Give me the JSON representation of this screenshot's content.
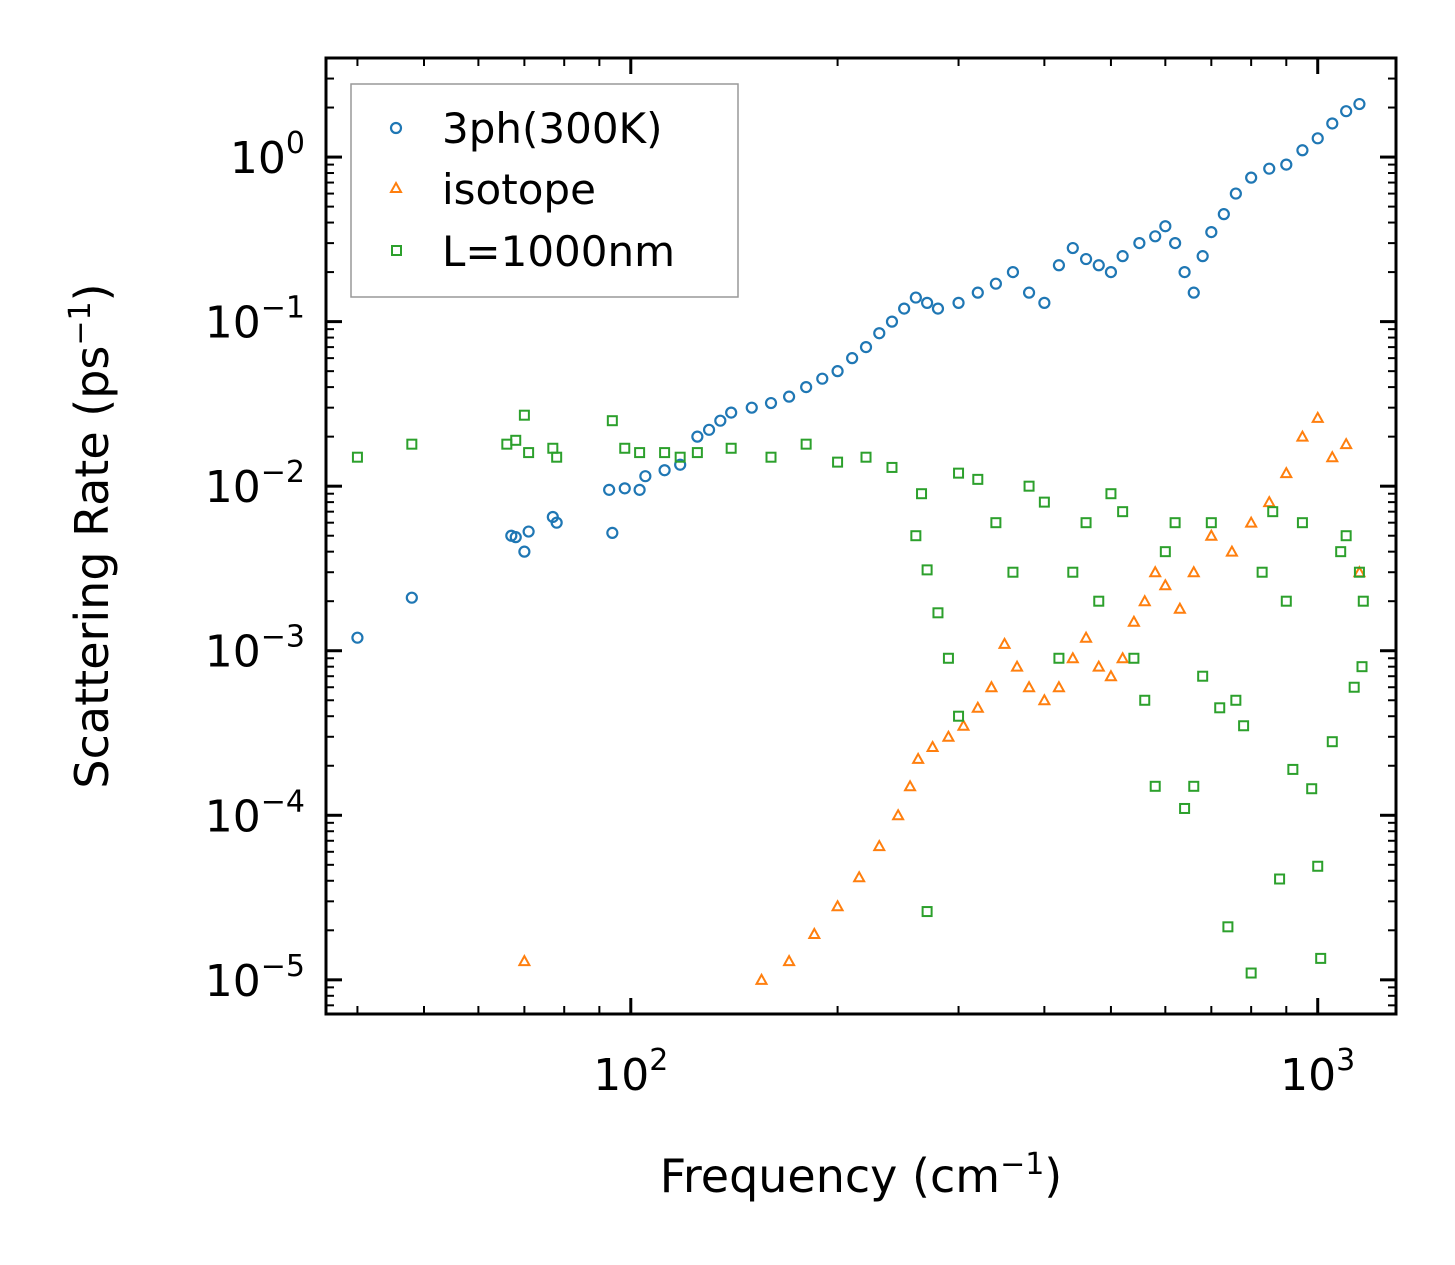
{
  "chart_data": {
    "type": "scatter",
    "xscale": "log",
    "yscale": "log",
    "xlim": [
      36,
      1300
    ],
    "ylim": [
      6.2e-06,
      4.0
    ],
    "xlabel": "Frequency (cm",
    "xlabel_sup": "−1",
    "xlabel_end": ")",
    "ylabel": "Scattering Rate (ps",
    "ylabel_sup": "−1",
    "ylabel_end": ")",
    "xticks": [
      {
        "value": 100,
        "base": "10",
        "exp": "2"
      },
      {
        "value": 1000,
        "base": "10",
        "exp": "3"
      }
    ],
    "yticks": [
      {
        "value": 1,
        "base": "10",
        "exp": "0"
      },
      {
        "value": 0.1,
        "base": "10",
        "exp": "−1"
      },
      {
        "value": 0.01,
        "base": "10",
        "exp": "−2"
      },
      {
        "value": 0.001,
        "base": "10",
        "exp": "−3"
      },
      {
        "value": 0.0001,
        "base": "10",
        "exp": "−4"
      },
      {
        "value": 1e-05,
        "base": "10",
        "exp": "−5"
      }
    ],
    "legend_position": "top-left",
    "series": [
      {
        "name": "3ph(300K)",
        "marker": "circle",
        "color": "#1f77b4",
        "points": [
          [
            40,
            0.0012
          ],
          [
            48,
            0.0021
          ],
          [
            67,
            0.005
          ],
          [
            68,
            0.0049
          ],
          [
            70,
            0.004
          ],
          [
            71,
            0.0053
          ],
          [
            77,
            0.0065
          ],
          [
            78,
            0.006
          ],
          [
            93,
            0.0095
          ],
          [
            94,
            0.0052
          ],
          [
            98,
            0.0097
          ],
          [
            103,
            0.0095
          ],
          [
            105,
            0.0115
          ],
          [
            112,
            0.0125
          ],
          [
            118,
            0.0135
          ],
          [
            125,
            0.02
          ],
          [
            130,
            0.022
          ],
          [
            135,
            0.025
          ],
          [
            140,
            0.028
          ],
          [
            150,
            0.03
          ],
          [
            160,
            0.032
          ],
          [
            170,
            0.035
          ],
          [
            180,
            0.04
          ],
          [
            190,
            0.045
          ],
          [
            200,
            0.05
          ],
          [
            210,
            0.06
          ],
          [
            220,
            0.07
          ],
          [
            230,
            0.085
          ],
          [
            240,
            0.1
          ],
          [
            250,
            0.12
          ],
          [
            260,
            0.14
          ],
          [
            270,
            0.13
          ],
          [
            280,
            0.12
          ],
          [
            300,
            0.13
          ],
          [
            320,
            0.15
          ],
          [
            340,
            0.17
          ],
          [
            360,
            0.2
          ],
          [
            380,
            0.15
          ],
          [
            400,
            0.13
          ],
          [
            420,
            0.22
          ],
          [
            440,
            0.28
          ],
          [
            460,
            0.24
          ],
          [
            480,
            0.22
          ],
          [
            500,
            0.2
          ],
          [
            520,
            0.25
          ],
          [
            550,
            0.3
          ],
          [
            580,
            0.33
          ],
          [
            600,
            0.38
          ],
          [
            620,
            0.3
          ],
          [
            640,
            0.2
          ],
          [
            660,
            0.15
          ],
          [
            680,
            0.25
          ],
          [
            700,
            0.35
          ],
          [
            730,
            0.45
          ],
          [
            760,
            0.6
          ],
          [
            800,
            0.75
          ],
          [
            850,
            0.85
          ],
          [
            900,
            0.9
          ],
          [
            950,
            1.1
          ],
          [
            1000,
            1.3
          ],
          [
            1050,
            1.6
          ],
          [
            1100,
            1.9
          ],
          [
            1150,
            2.1
          ]
        ]
      },
      {
        "name": "isotope",
        "marker": "triangle",
        "color": "#ff7f0e",
        "points": [
          [
            70,
            1.3e-05
          ],
          [
            155,
            1e-05
          ],
          [
            170,
            1.3e-05
          ],
          [
            185,
            1.9e-05
          ],
          [
            200,
            2.8e-05
          ],
          [
            215,
            4.2e-05
          ],
          [
            230,
            6.5e-05
          ],
          [
            245,
            0.0001
          ],
          [
            255,
            0.00015
          ],
          [
            262,
            0.00022
          ],
          [
            275,
            0.00026
          ],
          [
            290,
            0.0003
          ],
          [
            305,
            0.00035
          ],
          [
            320,
            0.00045
          ],
          [
            335,
            0.0006
          ],
          [
            350,
            0.0011
          ],
          [
            365,
            0.0008
          ],
          [
            380,
            0.0006
          ],
          [
            400,
            0.0005
          ],
          [
            420,
            0.0006
          ],
          [
            440,
            0.0009
          ],
          [
            460,
            0.0012
          ],
          [
            480,
            0.0008
          ],
          [
            500,
            0.0007
          ],
          [
            520,
            0.0009
          ],
          [
            540,
            0.0015
          ],
          [
            560,
            0.002
          ],
          [
            580,
            0.003
          ],
          [
            600,
            0.0025
          ],
          [
            630,
            0.0018
          ],
          [
            660,
            0.003
          ],
          [
            700,
            0.005
          ],
          [
            750,
            0.004
          ],
          [
            800,
            0.006
          ],
          [
            850,
            0.008
          ],
          [
            900,
            0.012
          ],
          [
            950,
            0.02
          ],
          [
            1000,
            0.026
          ],
          [
            1050,
            0.015
          ],
          [
            1100,
            0.018
          ],
          [
            1150,
            0.003
          ]
        ]
      },
      {
        "name": "L=1000nm",
        "marker": "square",
        "color": "#2ca02c",
        "points": [
          [
            40,
            0.015
          ],
          [
            48,
            0.018
          ],
          [
            66,
            0.018
          ],
          [
            68,
            0.019
          ],
          [
            70,
            0.027
          ],
          [
            71,
            0.016
          ],
          [
            77,
            0.017
          ],
          [
            78,
            0.015
          ],
          [
            94,
            0.025
          ],
          [
            98,
            0.017
          ],
          [
            103,
            0.016
          ],
          [
            112,
            0.016
          ],
          [
            118,
            0.015
          ],
          [
            125,
            0.016
          ],
          [
            140,
            0.017
          ],
          [
            160,
            0.015
          ],
          [
            180,
            0.018
          ],
          [
            200,
            0.014
          ],
          [
            220,
            0.015
          ],
          [
            240,
            0.013
          ],
          [
            260,
            0.005
          ],
          [
            265,
            0.009
          ],
          [
            270,
            0.0031
          ],
          [
            280,
            0.0017
          ],
          [
            290,
            0.0009
          ],
          [
            300,
            0.0004
          ],
          [
            270,
            2.6e-05
          ],
          [
            300,
            0.012
          ],
          [
            320,
            0.011
          ],
          [
            340,
            0.006
          ],
          [
            360,
            0.003
          ],
          [
            380,
            0.01
          ],
          [
            400,
            0.008
          ],
          [
            420,
            0.0009
          ],
          [
            440,
            0.003
          ],
          [
            460,
            0.006
          ],
          [
            480,
            0.002
          ],
          [
            500,
            0.009
          ],
          [
            520,
            0.007
          ],
          [
            540,
            0.0009
          ],
          [
            560,
            0.0005
          ],
          [
            580,
            0.00015
          ],
          [
            600,
            0.004
          ],
          [
            620,
            0.006
          ],
          [
            640,
            0.00011
          ],
          [
            660,
            0.00015
          ],
          [
            680,
            0.0007
          ],
          [
            700,
            0.006
          ],
          [
            720,
            0.00045
          ],
          [
            740,
            2.1e-05
          ],
          [
            760,
            0.0005
          ],
          [
            780,
            0.00035
          ],
          [
            800,
            1.1e-05
          ],
          [
            830,
            0.003
          ],
          [
            860,
            0.007
          ],
          [
            880,
            4.1e-05
          ],
          [
            900,
            0.002
          ],
          [
            920,
            0.00019
          ],
          [
            950,
            0.006
          ],
          [
            980,
            0.000145
          ],
          [
            1000,
            4.9e-05
          ],
          [
            1010,
            1.35e-05
          ],
          [
            1050,
            0.00028
          ],
          [
            1080,
            0.004
          ],
          [
            1100,
            0.005
          ],
          [
            1130,
            0.0006
          ],
          [
            1150,
            0.003
          ],
          [
            1160,
            0.0008
          ],
          [
            1165,
            0.002
          ]
        ]
      }
    ]
  }
}
